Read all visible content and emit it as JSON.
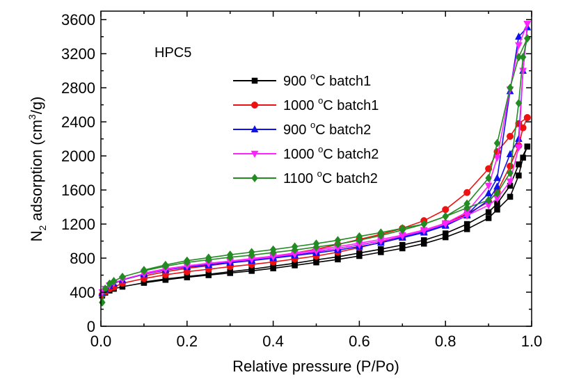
{
  "chart_data": {
    "type": "line",
    "annotation": "HPC5",
    "xlabel": "Relative pressure (P/Po)",
    "ylabel_main": "N",
    "ylabel_sub": "2",
    "ylabel_rest": " adsorption (cm",
    "ylabel_sup": "3",
    "ylabel_end": "/g)",
    "xlim": [
      0,
      1.0
    ],
    "ylim": [
      0,
      3700
    ],
    "x_ticks": [
      0.0,
      0.2,
      0.4,
      0.6,
      0.8,
      1.0
    ],
    "x_tick_labels": [
      "0.0",
      "0.2",
      "0.4",
      "0.6",
      "0.8",
      "1.0"
    ],
    "y_ticks": [
      0,
      400,
      800,
      1200,
      1600,
      2000,
      2400,
      2800,
      3200,
      3600
    ],
    "y_tick_labels": [
      "0",
      "400",
      "800",
      "1200",
      "1600",
      "2000",
      "2400",
      "2800",
      "3200",
      "3600"
    ],
    "grid": false,
    "legend_position": "top-center",
    "series": [
      {
        "name": "900 °C batch1",
        "legend_num": "900 ",
        "legend_deg": "o",
        "legend_rest": "C batch1",
        "color": "#000000",
        "marker": "square",
        "adsorption": [
          [
            0.003,
            360
          ],
          [
            0.01,
            395
          ],
          [
            0.02,
            420
          ],
          [
            0.03,
            440
          ],
          [
            0.05,
            465
          ],
          [
            0.1,
            510
          ],
          [
            0.15,
            545
          ],
          [
            0.2,
            575
          ],
          [
            0.25,
            600
          ],
          [
            0.3,
            625
          ],
          [
            0.35,
            650
          ],
          [
            0.4,
            680
          ],
          [
            0.45,
            715
          ],
          [
            0.5,
            750
          ],
          [
            0.55,
            785
          ],
          [
            0.6,
            825
          ],
          [
            0.65,
            870
          ],
          [
            0.7,
            915
          ],
          [
            0.75,
            970
          ],
          [
            0.8,
            1045
          ],
          [
            0.85,
            1140
          ],
          [
            0.9,
            1270
          ],
          [
            0.92,
            1370
          ],
          [
            0.95,
            1520
          ],
          [
            0.97,
            1770
          ],
          [
            0.98,
            1980
          ],
          [
            0.99,
            2110
          ]
        ],
        "desorption": [
          [
            0.99,
            2110
          ],
          [
            0.97,
            1900
          ],
          [
            0.95,
            1650
          ],
          [
            0.92,
            1440
          ],
          [
            0.9,
            1340
          ],
          [
            0.85,
            1200
          ],
          [
            0.8,
            1090
          ],
          [
            0.75,
            1010
          ],
          [
            0.7,
            955
          ],
          [
            0.65,
            905
          ],
          [
            0.6,
            860
          ],
          [
            0.55,
            815
          ],
          [
            0.5,
            780
          ],
          [
            0.45,
            740
          ],
          [
            0.4,
            705
          ],
          [
            0.35,
            670
          ],
          [
            0.3,
            640
          ],
          [
            0.25,
            610
          ],
          [
            0.2,
            585
          ],
          [
            0.15,
            555
          ],
          [
            0.1,
            520
          ]
        ]
      },
      {
        "name": "1000 °C batch1",
        "legend_num": "1000 ",
        "legend_deg": "o",
        "legend_rest": "C batch1",
        "color": "#ee1111",
        "marker": "circle",
        "adsorption": [
          [
            0.003,
            370
          ],
          [
            0.01,
            405
          ],
          [
            0.02,
            440
          ],
          [
            0.03,
            460
          ],
          [
            0.05,
            505
          ],
          [
            0.1,
            560
          ],
          [
            0.15,
            605
          ],
          [
            0.2,
            640
          ],
          [
            0.25,
            670
          ],
          [
            0.3,
            700
          ],
          [
            0.35,
            725
          ],
          [
            0.4,
            755
          ],
          [
            0.45,
            790
          ],
          [
            0.5,
            825
          ],
          [
            0.55,
            870
          ],
          [
            0.6,
            925
          ],
          [
            0.65,
            985
          ],
          [
            0.7,
            1050
          ],
          [
            0.75,
            1120
          ],
          [
            0.8,
            1210
          ],
          [
            0.85,
            1320
          ],
          [
            0.9,
            1460
          ],
          [
            0.92,
            1580
          ],
          [
            0.95,
            1880
          ],
          [
            0.97,
            2120
          ],
          [
            0.98,
            2330
          ],
          [
            0.99,
            2450
          ]
        ],
        "desorption": [
          [
            0.99,
            2450
          ],
          [
            0.97,
            2380
          ],
          [
            0.95,
            2230
          ],
          [
            0.92,
            2050
          ],
          [
            0.9,
            1850
          ],
          [
            0.85,
            1570
          ],
          [
            0.8,
            1370
          ],
          [
            0.75,
            1240
          ],
          [
            0.7,
            1150
          ],
          [
            0.65,
            1080
          ],
          [
            0.6,
            1020
          ],
          [
            0.55,
            960
          ],
          [
            0.5,
            905
          ],
          [
            0.45,
            860
          ],
          [
            0.4,
            815
          ],
          [
            0.35,
            780
          ],
          [
            0.3,
            745
          ],
          [
            0.25,
            710
          ],
          [
            0.2,
            680
          ],
          [
            0.15,
            640
          ],
          [
            0.1,
            590
          ]
        ]
      },
      {
        "name": "900 °C batch2",
        "legend_num": "900 ",
        "legend_deg": "o",
        "legend_rest": "C batch2",
        "color": "#1010ee",
        "marker": "triangle-up",
        "adsorption": [
          [
            0.003,
            390
          ],
          [
            0.01,
            430
          ],
          [
            0.02,
            470
          ],
          [
            0.03,
            500
          ],
          [
            0.05,
            545
          ],
          [
            0.1,
            610
          ],
          [
            0.15,
            660
          ],
          [
            0.2,
            695
          ],
          [
            0.25,
            720
          ],
          [
            0.3,
            745
          ],
          [
            0.35,
            770
          ],
          [
            0.4,
            800
          ],
          [
            0.45,
            830
          ],
          [
            0.5,
            860
          ],
          [
            0.55,
            895
          ],
          [
            0.6,
            935
          ],
          [
            0.65,
            980
          ],
          [
            0.7,
            1040
          ],
          [
            0.75,
            1100
          ],
          [
            0.8,
            1180
          ],
          [
            0.85,
            1300
          ],
          [
            0.9,
            1480
          ],
          [
            0.92,
            1640
          ],
          [
            0.95,
            2020
          ],
          [
            0.97,
            2200
          ],
          [
            0.98,
            3000
          ],
          [
            0.99,
            3510
          ]
        ],
        "desorption": [
          [
            0.99,
            3510
          ],
          [
            0.97,
            3400
          ],
          [
            0.95,
            2760
          ],
          [
            0.92,
            1740
          ],
          [
            0.9,
            1560
          ],
          [
            0.85,
            1310
          ],
          [
            0.8,
            1190
          ],
          [
            0.75,
            1110
          ],
          [
            0.7,
            1050
          ],
          [
            0.65,
            1000
          ],
          [
            0.6,
            955
          ],
          [
            0.55,
            915
          ],
          [
            0.5,
            875
          ],
          [
            0.45,
            840
          ],
          [
            0.4,
            810
          ],
          [
            0.35,
            780
          ],
          [
            0.3,
            750
          ],
          [
            0.25,
            725
          ],
          [
            0.2,
            700
          ],
          [
            0.15,
            665
          ],
          [
            0.1,
            615
          ]
        ]
      },
      {
        "name": "1000 °C batch2",
        "legend_num": "1000 ",
        "legend_deg": "o",
        "legend_rest": "C batch2",
        "color": "#ff22ff",
        "marker": "triangle-down",
        "adsorption": [
          [
            0.003,
            400
          ],
          [
            0.01,
            440
          ],
          [
            0.02,
            480
          ],
          [
            0.03,
            505
          ],
          [
            0.05,
            550
          ],
          [
            0.1,
            615
          ],
          [
            0.15,
            665
          ],
          [
            0.2,
            705
          ],
          [
            0.25,
            735
          ],
          [
            0.3,
            760
          ],
          [
            0.35,
            785
          ],
          [
            0.4,
            815
          ],
          [
            0.45,
            845
          ],
          [
            0.5,
            880
          ],
          [
            0.55,
            915
          ],
          [
            0.6,
            955
          ],
          [
            0.65,
            1000
          ],
          [
            0.7,
            1060
          ],
          [
            0.75,
            1120
          ],
          [
            0.8,
            1200
          ],
          [
            0.85,
            1300
          ],
          [
            0.9,
            1420
          ],
          [
            0.92,
            1500
          ],
          [
            0.95,
            1700
          ],
          [
            0.97,
            2100
          ],
          [
            0.98,
            3000
          ],
          [
            0.99,
            3550
          ]
        ],
        "desorption": [
          [
            0.99,
            3550
          ],
          [
            0.97,
            3300
          ],
          [
            0.95,
            2780
          ],
          [
            0.92,
            1980
          ],
          [
            0.9,
            1650
          ],
          [
            0.85,
            1340
          ],
          [
            0.8,
            1210
          ],
          [
            0.75,
            1130
          ],
          [
            0.7,
            1070
          ],
          [
            0.65,
            1020
          ],
          [
            0.6,
            975
          ],
          [
            0.55,
            935
          ],
          [
            0.5,
            895
          ],
          [
            0.45,
            860
          ],
          [
            0.4,
            825
          ],
          [
            0.35,
            795
          ],
          [
            0.3,
            765
          ],
          [
            0.25,
            740
          ],
          [
            0.2,
            710
          ],
          [
            0.15,
            675
          ],
          [
            0.1,
            625
          ]
        ]
      },
      {
        "name": "1100 °C batch2",
        "legend_num": "1100 ",
        "legend_deg": "o",
        "legend_rest": "C batch2",
        "color": "#228b22",
        "marker": "diamond",
        "adsorption": [
          [
            0.003,
            280
          ],
          [
            0.01,
            440
          ],
          [
            0.02,
            500
          ],
          [
            0.03,
            530
          ],
          [
            0.05,
            580
          ],
          [
            0.1,
            650
          ],
          [
            0.15,
            705
          ],
          [
            0.2,
            750
          ],
          [
            0.25,
            780
          ],
          [
            0.3,
            810
          ],
          [
            0.35,
            835
          ],
          [
            0.4,
            865
          ],
          [
            0.45,
            895
          ],
          [
            0.5,
            930
          ],
          [
            0.55,
            965
          ],
          [
            0.6,
            1010
          ],
          [
            0.65,
            1065
          ],
          [
            0.7,
            1130
          ],
          [
            0.75,
            1200
          ],
          [
            0.8,
            1290
          ],
          [
            0.85,
            1390
          ],
          [
            0.9,
            1480
          ],
          [
            0.92,
            1560
          ],
          [
            0.95,
            1800
          ],
          [
            0.97,
            2620
          ],
          [
            0.98,
            3160
          ],
          [
            0.99,
            3380
          ]
        ],
        "desorption": [
          [
            0.99,
            3380
          ],
          [
            0.97,
            3160
          ],
          [
            0.95,
            2800
          ],
          [
            0.92,
            2150
          ],
          [
            0.9,
            1740
          ],
          [
            0.85,
            1440
          ],
          [
            0.8,
            1290
          ],
          [
            0.75,
            1200
          ],
          [
            0.7,
            1150
          ],
          [
            0.65,
            1100
          ],
          [
            0.6,
            1055
          ],
          [
            0.55,
            1010
          ],
          [
            0.5,
            970
          ],
          [
            0.45,
            935
          ],
          [
            0.4,
            900
          ],
          [
            0.35,
            870
          ],
          [
            0.3,
            840
          ],
          [
            0.25,
            805
          ],
          [
            0.2,
            770
          ],
          [
            0.15,
            720
          ],
          [
            0.1,
            660
          ]
        ]
      }
    ]
  }
}
